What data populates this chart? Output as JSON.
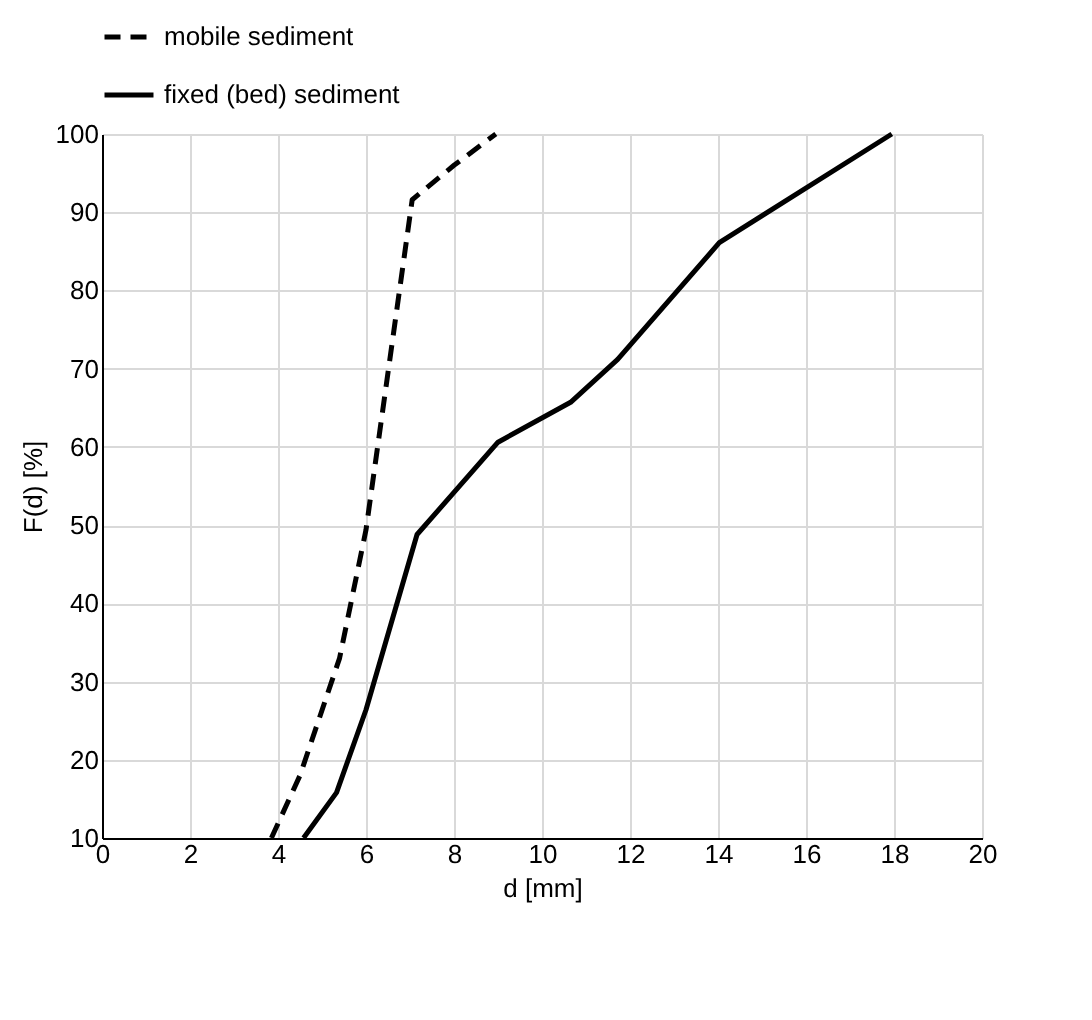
{
  "chart_data": {
    "type": "line",
    "xlabel": "d [mm]",
    "ylabel": "F(d) [%]",
    "xlim": [
      0,
      20
    ],
    "xticks": [
      0,
      2,
      4,
      6,
      8,
      10,
      12,
      14,
      16,
      18,
      20
    ],
    "ylim": [
      10,
      100
    ],
    "yticks": [
      10,
      20,
      30,
      40,
      50,
      60,
      70,
      80,
      90,
      100
    ],
    "grid": true,
    "legend": "top",
    "marker": "none",
    "series": [
      {
        "name": "mobile sediment",
        "color": "#000000",
        "line_style": "dashed",
        "x": [
          3.85,
          4.5,
          5.4,
          6.0,
          7.05,
          8.0,
          8.95
        ],
        "values": [
          10,
          18,
          33,
          49.4,
          91.6,
          96,
          100
        ]
      },
      {
        "name": "fixed (bed) sediment",
        "color": "#000000",
        "line_style": "solid",
        "x": [
          4.58,
          5.33,
          6.0,
          7.16,
          9.0,
          10.65,
          11.72,
          14.03,
          17.95
        ],
        "values": [
          10,
          15.8,
          26.4,
          48.8,
          60.6,
          65.7,
          71.2,
          86.1,
          100
        ]
      }
    ]
  }
}
